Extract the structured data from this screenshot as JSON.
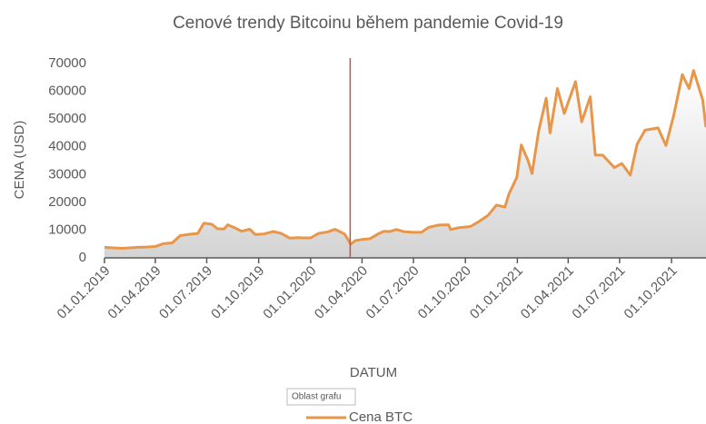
{
  "chart_data": {
    "type": "area",
    "title": "Cenové trendy Bitcoinu během pandemie Covid-19",
    "x_label": "DATUM",
    "y_label": "CENA (USD)",
    "tooltip": "Oblast grafu",
    "series": [
      {
        "name": "Cena BTC",
        "color": "#e8964a",
        "x": [
          "2019-01-01",
          "2019-01-15",
          "2019-02-01",
          "2019-02-15",
          "2019-03-01",
          "2019-03-15",
          "2019-04-01",
          "2019-04-15",
          "2019-05-01",
          "2019-05-15",
          "2019-06-01",
          "2019-06-15",
          "2019-06-26",
          "2019-07-10",
          "2019-07-20",
          "2019-08-01",
          "2019-08-07",
          "2019-08-20",
          "2019-09-01",
          "2019-09-15",
          "2019-09-25",
          "2019-10-10",
          "2019-10-27",
          "2019-11-10",
          "2019-11-25",
          "2019-12-10",
          "2019-12-20",
          "2020-01-01",
          "2020-01-15",
          "2020-02-01",
          "2020-02-13",
          "2020-03-01",
          "2020-03-12",
          "2020-03-20",
          "2020-04-01",
          "2020-04-15",
          "2020-04-30",
          "2020-05-10",
          "2020-05-20",
          "2020-06-01",
          "2020-06-15",
          "2020-07-01",
          "2020-07-15",
          "2020-07-28",
          "2020-08-15",
          "2020-09-01",
          "2020-09-05",
          "2020-09-20",
          "2020-10-10",
          "2020-10-25",
          "2020-11-10",
          "2020-11-25",
          "2020-12-10",
          "2020-12-17",
          "2020-12-31",
          "2021-01-08",
          "2021-01-20",
          "2021-01-27",
          "2021-02-08",
          "2021-02-21",
          "2021-02-28",
          "2021-03-13",
          "2021-03-25",
          "2021-04-14",
          "2021-04-25",
          "2021-05-10",
          "2021-05-19",
          "2021-06-01",
          "2021-06-22",
          "2021-07-05",
          "2021-07-20",
          "2021-08-01",
          "2021-08-15",
          "2021-09-07",
          "2021-09-21",
          "2021-10-05",
          "2021-10-20",
          "2021-11-01",
          "2021-11-09",
          "2021-11-25",
          "2021-12-01"
        ],
        "values": [
          3800,
          3600,
          3450,
          3600,
          3800,
          3900,
          4100,
          5100,
          5400,
          8000,
          8500,
          8800,
          12500,
          12100,
          10500,
          10400,
          11900,
          10800,
          9600,
          10300,
          8400,
          8600,
          9500,
          8800,
          7100,
          7300,
          7200,
          7200,
          8800,
          9400,
          10300,
          8600,
          4900,
          6200,
          6600,
          6900,
          8700,
          9600,
          9500,
          10200,
          9400,
          9200,
          9200,
          11000,
          11800,
          11900,
          10200,
          10900,
          11300,
          13100,
          15300,
          19000,
          18300,
          23000,
          29000,
          40700,
          35000,
          30400,
          46000,
          57500,
          45000,
          61000,
          52000,
          63500,
          49000,
          58000,
          37000,
          37000,
          32500,
          34000,
          29800,
          41000,
          46000,
          46800,
          40500,
          51500,
          66000,
          61000,
          67500,
          57000,
          47000
        ]
      }
    ],
    "xlim": [
      "2019-01-01",
      "2021-12-01"
    ],
    "xticks": [
      {
        "value": "2019-01-01",
        "label": "01.01.2019"
      },
      {
        "value": "2019-04-01",
        "label": "01.04.2019"
      },
      {
        "value": "2019-07-01",
        "label": "01.07.2019"
      },
      {
        "value": "2019-10-01",
        "label": "01.10.2019"
      },
      {
        "value": "2020-01-01",
        "label": "01.01.2020"
      },
      {
        "value": "2020-04-01",
        "label": "01.04.2020"
      },
      {
        "value": "2020-07-01",
        "label": "01.07.2020"
      },
      {
        "value": "2020-10-01",
        "label": "01.10.2020"
      },
      {
        "value": "2021-01-01",
        "label": "01.01.2021"
      },
      {
        "value": "2021-04-01",
        "label": "01.04.2021"
      },
      {
        "value": "2021-07-01",
        "label": "01.07.2021"
      },
      {
        "value": "2021-10-01",
        "label": "01.10.2021"
      }
    ],
    "ylim": [
      0,
      70000
    ],
    "yticks": [
      0,
      10000,
      20000,
      30000,
      40000,
      50000,
      60000,
      70000
    ],
    "vline": {
      "x": "2020-03-11",
      "color": "#c0504d"
    }
  }
}
